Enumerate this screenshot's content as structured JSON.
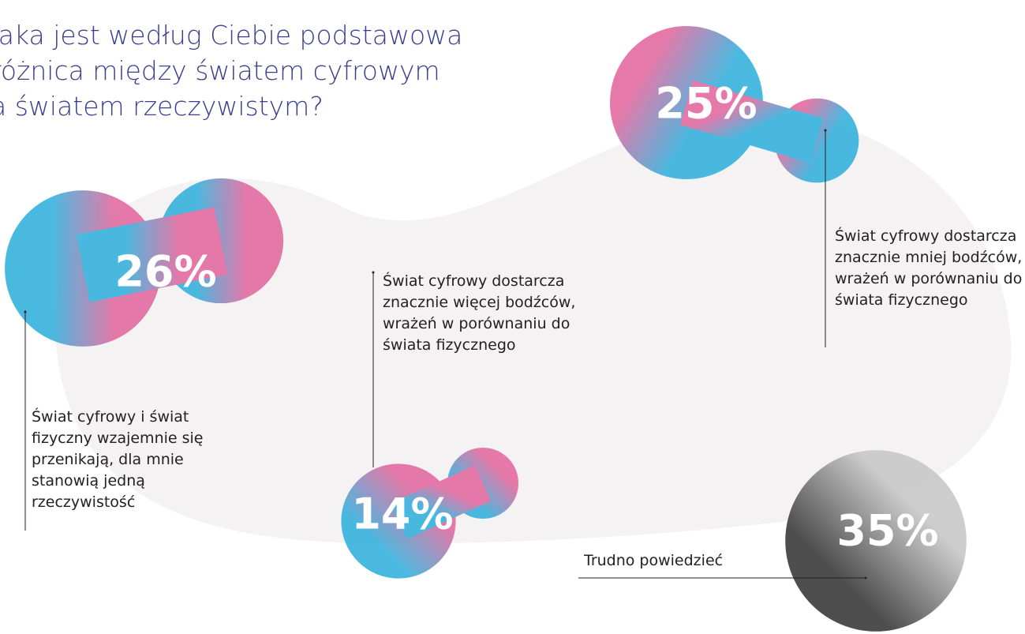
{
  "chart_data": {
    "type": "bubble",
    "title": "Jaka jest według Ciebie podstawowa różnica między światem cyfrowym a światem rzeczywistym?",
    "categories": [
      "Świat cyfrowy i świat fizyczny wzajemnie się przenikają, dla mnie stanowią jedną rzeczywistość",
      "Świat cyfrowy dostarcza znacznie więcej bodźców, wrażeń w porównaniu do świata fizycznego",
      "Świat cyfrowy dostarcza znacznie mniej bodźców, wrażeń w porównaniu do świata fizycznego",
      "Trudno powiedzieć"
    ],
    "values": [
      26,
      14,
      25,
      35
    ],
    "value_labels": [
      "26%",
      "14%",
      "25%",
      "35%"
    ],
    "gradient_colors": [
      "#e36ea3",
      "#3ab4de"
    ],
    "neutral_colors": [
      "#3f3f3f",
      "#c9c9c9"
    ]
  }
}
